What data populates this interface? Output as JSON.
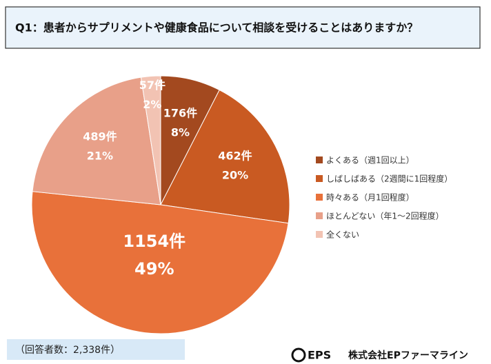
{
  "chart_data": {
    "type": "pie",
    "title": "Q1：患者からサプリメントや健康食品について相談を受けることはありますか？",
    "categories": [
      "よくある（週1回以上）",
      "しばしばある（2週間に1回程度）",
      "時々ある（月1回程度）",
      "ほとんどない（年1～2回程度）",
      "全くない"
    ],
    "values": [
      176,
      462,
      1154,
      489,
      57
    ],
    "value_labels": [
      "176件",
      "462件",
      "1154件",
      "489件",
      "57件"
    ],
    "percent_labels": [
      "8%",
      "20%",
      "49%",
      "21%",
      "2%"
    ],
    "colors": [
      "#a3491f",
      "#c95a22",
      "#e8713a",
      "#e8a089",
      "#f2c3b3"
    ],
    "legend": "right"
  },
  "note": "（回答者数：2,338件）",
  "logo": {
    "mark": "EPS",
    "company": "株式会社EPファーマライン"
  }
}
